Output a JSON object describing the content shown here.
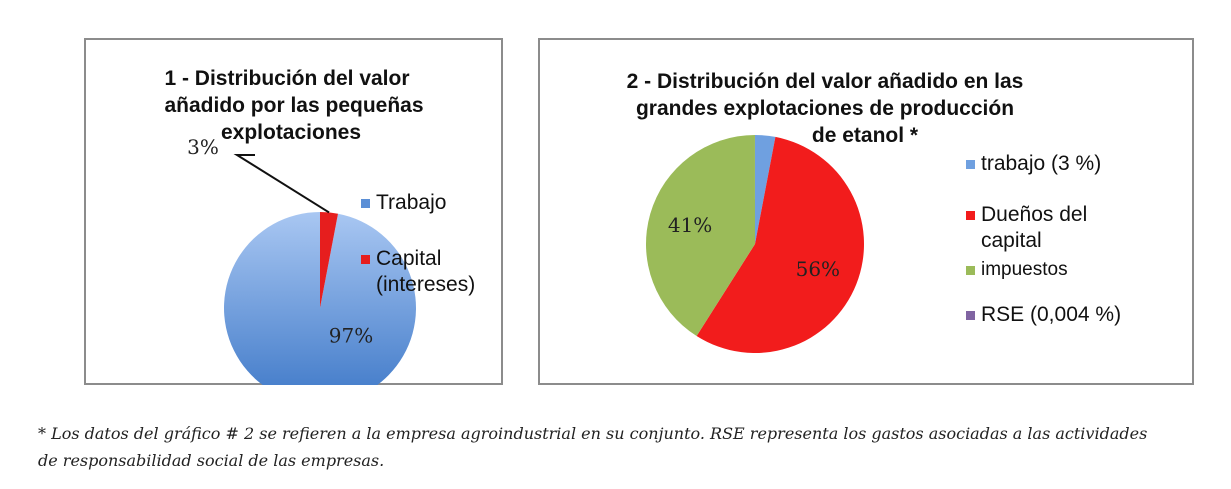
{
  "chart_data": [
    {
      "type": "pie",
      "title": [
        "1 - Distribución del valor",
        "añadido por las pequeñas",
        "explotaciones"
      ],
      "slices": [
        {
          "label": "Trabajo",
          "value": 97,
          "value_label": "97%",
          "color": "#5b8fd6"
        },
        {
          "label": "Capital (intereses)",
          "legend_lines": [
            "Capital",
            "(intereses)"
          ],
          "value": 3,
          "value_label": "3%",
          "color": "#e61e1e"
        }
      ]
    },
    {
      "type": "pie",
      "title": [
        "2 - Distribución del valor añadido en las",
        "grandes explotaciones de producción",
        "de etanol *"
      ],
      "slices": [
        {
          "label": "trabajo (3 %)",
          "legend_lines": [
            "trabajo (3 %)"
          ],
          "value": 3,
          "value_label": "",
          "color": "#6fa0e0"
        },
        {
          "label": "Dueños del capital",
          "legend_lines": [
            "Dueños del",
            "capital"
          ],
          "value": 56,
          "value_label": "56%",
          "color": "#f21c1c"
        },
        {
          "label": "impuestos",
          "legend_lines": [
            "impuestos"
          ],
          "value": 41,
          "value_label": "41%",
          "color": "#9bbb59"
        },
        {
          "label": "RSE (0,004 %)",
          "legend_lines": [
            "RSE (0,004 %)"
          ],
          "value": 0.004,
          "value_label": "",
          "color": "#8064a2"
        }
      ]
    }
  ],
  "footnote": {
    "line1": "* Los datos del gráfico # 2 se refieren a la empresa agroindustrial en su conjunto. RSE representa los gastos asociadas a las actividades",
    "line2": "de responsabilidad social de las empresas."
  }
}
